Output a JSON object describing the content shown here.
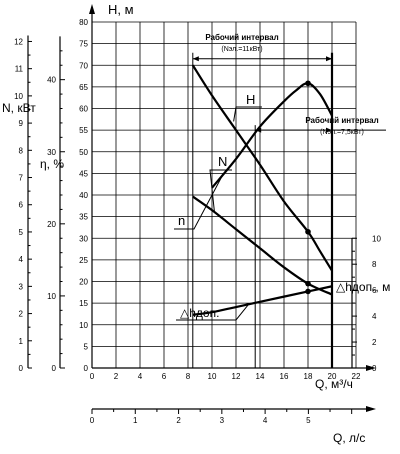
{
  "chart_data": {
    "type": "line",
    "axes": {
      "H": {
        "label": "H, м",
        "ticks": [
          "0",
          "5",
          "10",
          "15",
          "20",
          "25",
          "30",
          "35",
          "40",
          "45",
          "50",
          "55",
          "60",
          "65",
          "70",
          "75",
          "80"
        ],
        "range": [
          0,
          80
        ]
      },
      "Q_m3h": {
        "label": "Q, м³/ч",
        "ticks": [
          "0",
          "2",
          "4",
          "6",
          "8",
          "10",
          "12",
          "14",
          "16",
          "18",
          "20",
          "22"
        ],
        "range": [
          0,
          22
        ]
      },
      "N": {
        "label": "N, кВт",
        "ticks": [
          "0",
          "1",
          "2",
          "3",
          "4",
          "5",
          "6",
          "7",
          "8",
          "9",
          "10",
          "11",
          "12"
        ],
        "range": [
          0,
          12
        ]
      },
      "eta": {
        "label": "η, %",
        "ticks": [
          "0",
          "10",
          "20",
          "30",
          "40"
        ],
        "range": [
          0,
          48
        ]
      },
      "dh": {
        "label": "△hдоп., м",
        "ticks": [
          "0",
          "2",
          "4",
          "6",
          "8",
          "10"
        ],
        "range": [
          0,
          10
        ]
      },
      "Q_ls": {
        "label": "Q, л/с",
        "ticks": [
          "0",
          "1",
          "2",
          "3",
          "4",
          "5"
        ],
        "range": [
          0,
          6.1
        ]
      }
    },
    "series": [
      {
        "name": "H",
        "axis": "H",
        "x": [
          8.4,
          10,
          12,
          14,
          16,
          18,
          19,
          20
        ],
        "y": [
          70,
          63,
          55,
          47,
          38.5,
          31.5,
          27,
          22.5
        ]
      },
      {
        "name": "N",
        "axis": "N",
        "x": [
          8.4,
          10,
          12,
          14,
          16,
          18,
          20
        ],
        "y": [
          6.3,
          5.8,
          5.1,
          4.4,
          3.7,
          3.1,
          2.7
        ]
      },
      {
        "name": "n",
        "axis": "eta",
        "x": [
          10,
          12,
          14,
          16,
          17,
          18,
          19,
          20
        ],
        "y": [
          25,
          29,
          33.5,
          37,
          38.5,
          39.5,
          38,
          35
        ]
      },
      {
        "name": "△hдоп.",
        "axis": "dh",
        "x": [
          8.4,
          10,
          12,
          14,
          16,
          18,
          20
        ],
        "y": [
          4.1,
          4.3,
          4.7,
          5.1,
          5.5,
          5.9,
          6.3
        ]
      }
    ],
    "annotations": {
      "interval1_title": "Рабочий интервал",
      "interval1_sub": "(Nэл.=11кВт)",
      "interval1_range": [
        8.4,
        20
      ],
      "interval2_title": "Рабочий интервал",
      "interval2_sub": "(Nэл.=7,5кВт)",
      "interval2_range": [
        13.6,
        20
      ],
      "curve_labels": {
        "H": "H",
        "N": "N",
        "n": "n",
        "dh": "△hдоп."
      }
    },
    "grid": true
  }
}
